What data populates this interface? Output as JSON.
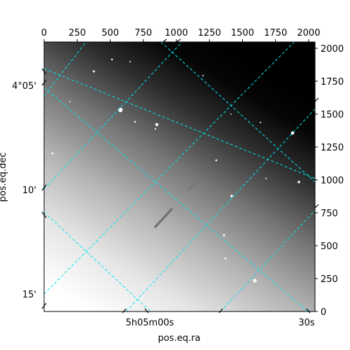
{
  "chart_data": {
    "type": "image",
    "title": "",
    "pixel_axes": {
      "x_ticks": [
        0,
        250,
        500,
        750,
        1000,
        1250,
        1500,
        1750,
        2000
      ],
      "y_ticks": [
        0,
        250,
        500,
        750,
        1000,
        1250,
        1500,
        1750,
        2000
      ],
      "x_range": [
        0,
        2048
      ],
      "y_range": [
        0,
        2048
      ]
    },
    "world_axes": {
      "xlabel": "pos.eq.ra",
      "ylabel": "pos.eq.dec",
      "ra_tick_labels": [
        "5h05m00s",
        "30s"
      ],
      "dec_tick_labels": [
        "4°05'",
        "10'",
        "15'"
      ]
    },
    "grid": true,
    "grid_color": "#00e5ee",
    "colormap": "gray",
    "features": {
      "background": "bright at lower-left, fading to dark at upper-right",
      "streaks": 2,
      "stars": "scattered point sources"
    }
  }
}
